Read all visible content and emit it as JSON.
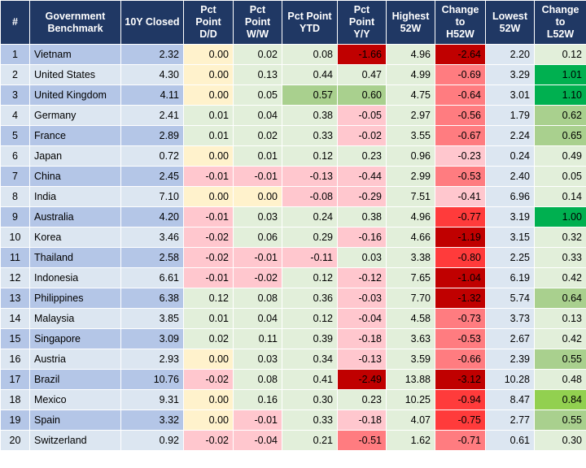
{
  "table": {
    "header": [
      "#",
      "Government\nBenchmark",
      "10Y Closed",
      "Pct\nPoint\nD/D",
      "Pct\nPoint\nW/W",
      "Pct Point\nYTD",
      "Pct\nPoint\nY/Y",
      "Highest\n52W",
      "Change\nto\nH52W",
      "Lowest\n52W",
      "Change\nto\nL52W"
    ],
    "rows": [
      [
        "1",
        "Vietnam",
        "2.32",
        "0.00",
        "0.02",
        "0.08",
        "-1.66",
        "4.96",
        "-2.64",
        "2.20",
        "0.12"
      ],
      [
        "2",
        "United States",
        "4.30",
        "0.00",
        "0.13",
        "0.44",
        "0.47",
        "4.99",
        "-0.69",
        "3.29",
        "1.01"
      ],
      [
        "3",
        "United Kingdom",
        "4.11",
        "0.00",
        "0.05",
        "0.57",
        "0.60",
        "4.75",
        "-0.64",
        "3.01",
        "1.10"
      ],
      [
        "4",
        "Germany",
        "2.41",
        "0.01",
        "0.04",
        "0.38",
        "-0.05",
        "2.97",
        "-0.56",
        "1.79",
        "0.62"
      ],
      [
        "5",
        "France",
        "2.89",
        "0.01",
        "0.02",
        "0.33",
        "-0.02",
        "3.55",
        "-0.67",
        "2.24",
        "0.65"
      ],
      [
        "6",
        "Japan",
        "0.72",
        "0.00",
        "0.01",
        "0.12",
        "0.23",
        "0.96",
        "-0.23",
        "0.24",
        "0.49"
      ],
      [
        "7",
        "China",
        "2.45",
        "-0.01",
        "-0.01",
        "-0.13",
        "-0.44",
        "2.99",
        "-0.53",
        "2.40",
        "0.05"
      ],
      [
        "8",
        "India",
        "7.10",
        "0.00",
        "0.00",
        "-0.08",
        "-0.29",
        "7.51",
        "-0.41",
        "6.96",
        "0.14"
      ],
      [
        "9",
        "Australia",
        "4.20",
        "-0.01",
        "0.03",
        "0.24",
        "0.38",
        "4.96",
        "-0.77",
        "3.19",
        "1.00"
      ],
      [
        "10",
        "Korea",
        "3.46",
        "-0.02",
        "0.06",
        "0.29",
        "-0.16",
        "4.66",
        "-1.19",
        "3.15",
        "0.32"
      ],
      [
        "11",
        "Thailand",
        "2.58",
        "-0.02",
        "-0.01",
        "-0.11",
        "0.03",
        "3.38",
        "-0.80",
        "2.25",
        "0.33"
      ],
      [
        "12",
        "Indonesia",
        "6.61",
        "-0.01",
        "-0.02",
        "0.12",
        "-0.12",
        "7.65",
        "-1.04",
        "6.19",
        "0.42"
      ],
      [
        "13",
        "Philippines",
        "6.38",
        "0.12",
        "0.08",
        "0.36",
        "-0.03",
        "7.70",
        "-1.32",
        "5.74",
        "0.64"
      ],
      [
        "14",
        "Malaysia",
        "3.85",
        "0.01",
        "0.04",
        "0.12",
        "-0.04",
        "4.58",
        "-0.73",
        "3.73",
        "0.13"
      ],
      [
        "15",
        "Singapore",
        "3.09",
        "0.02",
        "0.11",
        "0.39",
        "-0.18",
        "3.63",
        "-0.53",
        "2.67",
        "0.42"
      ],
      [
        "16",
        "Austria",
        "2.93",
        "0.00",
        "0.03",
        "0.34",
        "-0.13",
        "3.59",
        "-0.66",
        "2.39",
        "0.55"
      ],
      [
        "17",
        "Brazil",
        "10.76",
        "-0.02",
        "0.08",
        "0.41",
        "-2.49",
        "13.88",
        "-3.12",
        "10.28",
        "0.48"
      ],
      [
        "18",
        "Mexico",
        "9.31",
        "0.00",
        "0.16",
        "0.30",
        "0.23",
        "10.25",
        "-0.94",
        "8.47",
        "0.84"
      ],
      [
        "19",
        "Spain",
        "3.32",
        "0.00",
        "-0.01",
        "0.33",
        "-0.18",
        "4.07",
        "-0.75",
        "2.77",
        "0.55"
      ],
      [
        "20",
        "Switzerland",
        "0.92",
        "-0.02",
        "-0.04",
        "0.21",
        "-0.51",
        "1.62",
        "-0.71",
        "0.61",
        "0.30"
      ]
    ]
  }
}
